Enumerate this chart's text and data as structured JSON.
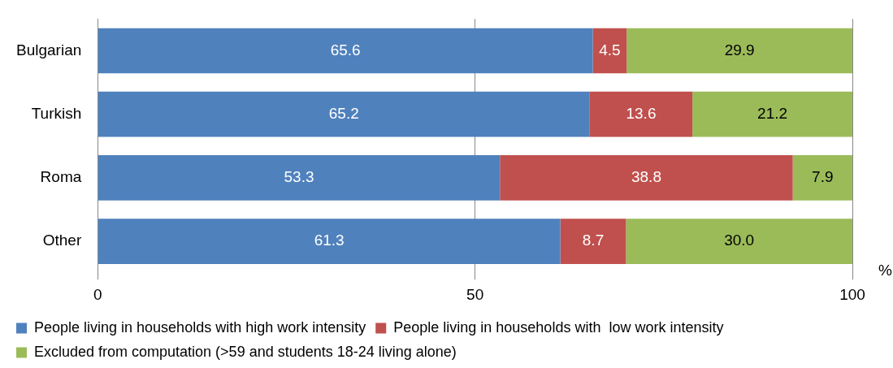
{
  "chart_data": {
    "type": "bar",
    "orientation": "horizontal",
    "stacked": true,
    "categories": [
      "Bulgarian",
      "Turkish",
      "Roma",
      "Other"
    ],
    "series": [
      {
        "name": "People living in households with high work intensity",
        "color": "#4f81bd",
        "values": [
          65.6,
          65.2,
          53.3,
          61.3
        ],
        "value_labels": [
          "65.6",
          "65.2",
          "53.3",
          "61.3"
        ]
      },
      {
        "name": "People living in households with  low work intensity",
        "color": "#c0504d",
        "values": [
          4.5,
          13.6,
          38.8,
          8.7
        ],
        "value_labels": [
          "4.5",
          "13.6",
          "38.8",
          "8.7"
        ]
      },
      {
        "name": "Excluded from computation (>59 and students 18-24 living alone)",
        "color": "#9bbb59",
        "values": [
          29.9,
          21.2,
          7.9,
          30.0
        ],
        "value_labels": [
          "29.9",
          "21.2",
          "7.9",
          "30.0"
        ]
      }
    ],
    "xlim": [
      0,
      100
    ],
    "xticks": [
      0,
      50,
      100
    ],
    "xlabel": "%",
    "grid": "x",
    "legend": "bottom"
  }
}
